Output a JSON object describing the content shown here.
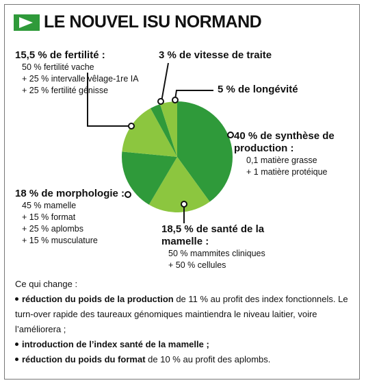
{
  "chart_data": {
    "type": "pie",
    "title": "LE NOUVEL ISU NORMAND",
    "categories": [
      "de synthèse de production :",
      "de santé de la mamelle :",
      "de morphologie :",
      "de fertilité :",
      "de vitesse de traite",
      "de longévité"
    ],
    "values": [
      40,
      18.5,
      18,
      15.5,
      3,
      5
    ],
    "value_labels": [
      "40 %",
      "18,5 %",
      "18 %",
      "15,5 %",
      "3 %",
      "5 %"
    ],
    "colors": [
      "#2f9a3a",
      "#8cc63f",
      "#2f9a3a",
      "#8cc63f",
      "#2f9a3a",
      "#8cc63f"
    ],
    "details": [
      [
        "0,1 matière grasse",
        "+ 1 matière protéique"
      ],
      [
        "50 % mammites cliniques",
        "+ 50 % cellules"
      ],
      [
        "45 % mamelle",
        "+ 15 % format",
        "+ 25 % aplombs",
        "+ 15 % musculature"
      ],
      [
        "50 % fertilité vache",
        "+ 25 % intervalle vêlage-1re IA",
        "+ 25 % fertilité génisse"
      ],
      [],
      []
    ],
    "footer": {
      "heading": "Ce qui change :",
      "bullets": [
        {
          "bold": "réduction du poids de la production",
          "text": " de 11 % au profit des index fonctionnels. Le turn-over rapide des taureaux génomiques maintiendra le niveau laitier, voire l’améliorera ;"
        },
        {
          "bold": "introduction de l’index santé de la mamelle ;",
          "text": ""
        },
        {
          "bold": "réduction du poids du format",
          "text": " de 10 % au profit des aplombs."
        }
      ]
    }
  }
}
